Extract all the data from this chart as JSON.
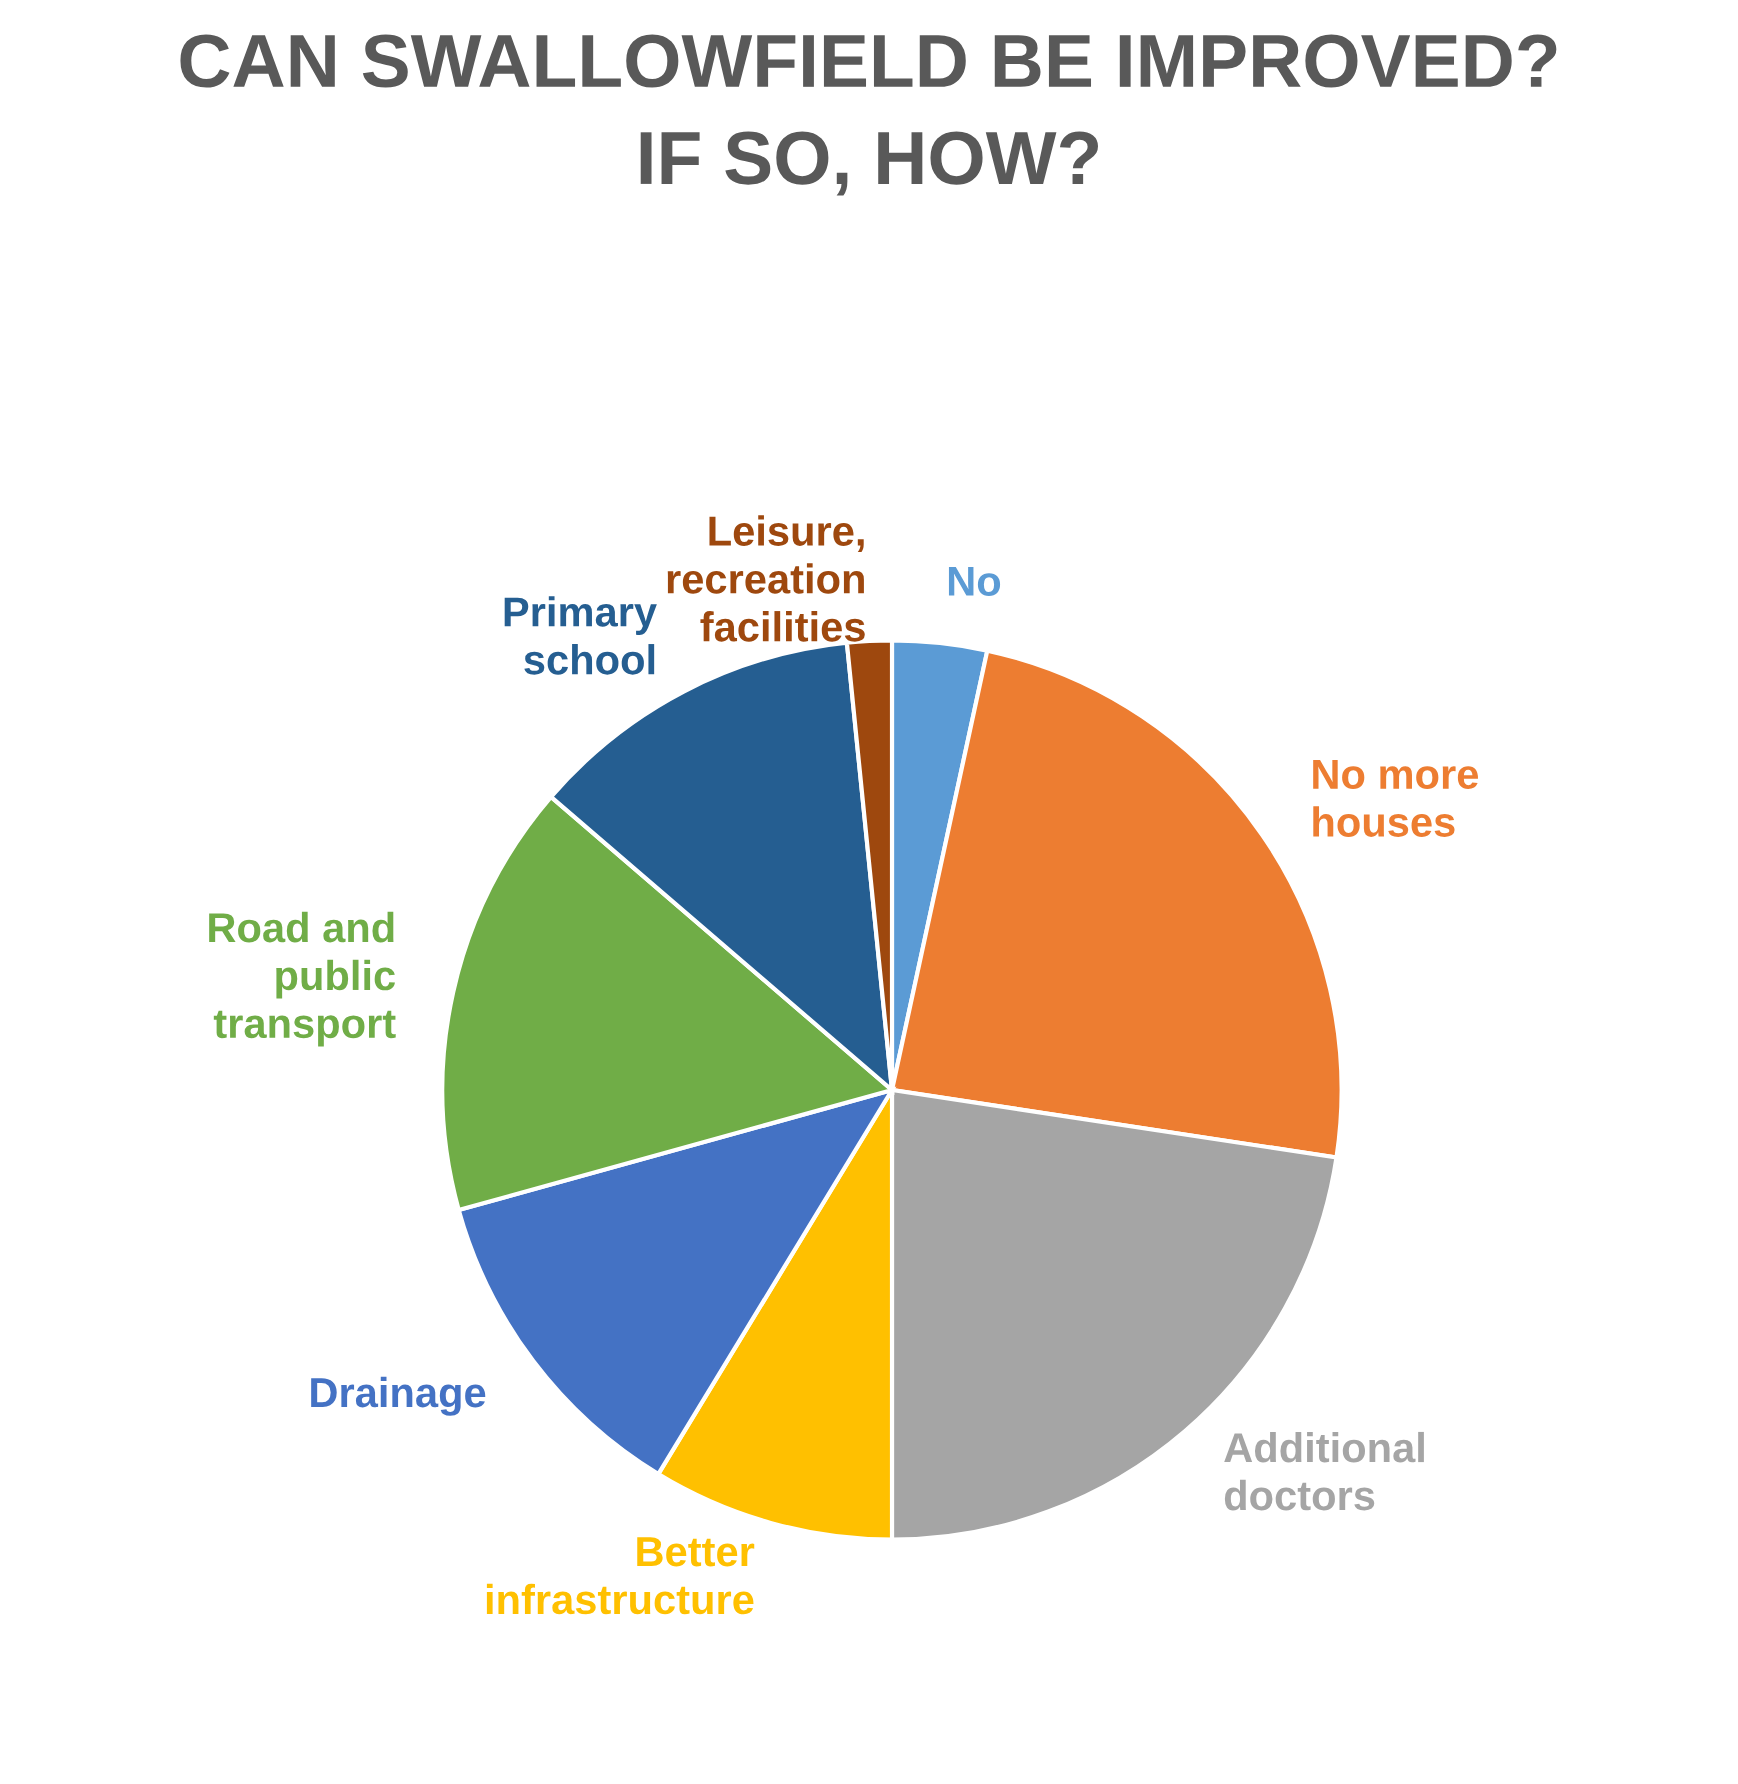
{
  "chart_data": {
    "type": "pie",
    "title": "CAN SWALLOWFIELD BE IMPROVED?\nIF SO, HOW?",
    "categories": [
      "No",
      "No more\nhouses",
      "Additional\ndoctors",
      "Better\ninfrastructure",
      "Drainage",
      "Road and\npublic\ntransport",
      "Primary\nschool",
      "Leisure,\nrecreation\nfacilities"
    ],
    "values": [
      3.4,
      24.0,
      22.6,
      8.7,
      12.0,
      15.6,
      12.1,
      1.6
    ],
    "colors": [
      "#5b9bd5",
      "#ed7d31",
      "#a5a5a5",
      "#ffc000",
      "#4472c4",
      "#70ad47",
      "#255e91",
      "#9e480e"
    ],
    "legend": false
  }
}
